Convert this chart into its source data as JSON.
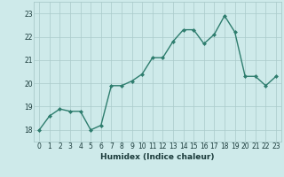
{
  "x": [
    0,
    1,
    2,
    3,
    4,
    5,
    6,
    7,
    8,
    9,
    10,
    11,
    12,
    13,
    14,
    15,
    16,
    17,
    18,
    19,
    20,
    21,
    22,
    23
  ],
  "y": [
    18.0,
    18.6,
    18.9,
    18.8,
    18.8,
    18.0,
    18.2,
    19.9,
    19.9,
    20.1,
    20.4,
    21.1,
    21.1,
    21.8,
    22.3,
    22.3,
    21.7,
    22.1,
    22.9,
    22.2,
    20.3,
    20.3,
    19.9,
    20.3
  ],
  "line_color": "#2e7d6e",
  "marker": "D",
  "marker_size": 2,
  "linewidth": 1.0,
  "xlabel": "Humidex (Indice chaleur)",
  "bg_color": "#ceeaea",
  "grid_color": "#aacaca",
  "tick_color": "#1a3a3a",
  "xlim": [
    -0.5,
    23.5
  ],
  "ylim": [
    17.5,
    23.5
  ],
  "yticks": [
    18,
    19,
    20,
    21,
    22,
    23
  ],
  "xticks": [
    0,
    1,
    2,
    3,
    4,
    5,
    6,
    7,
    8,
    9,
    10,
    11,
    12,
    13,
    14,
    15,
    16,
    17,
    18,
    19,
    20,
    21,
    22,
    23
  ],
  "tick_fontsize": 5.5,
  "xlabel_fontsize": 6.5
}
